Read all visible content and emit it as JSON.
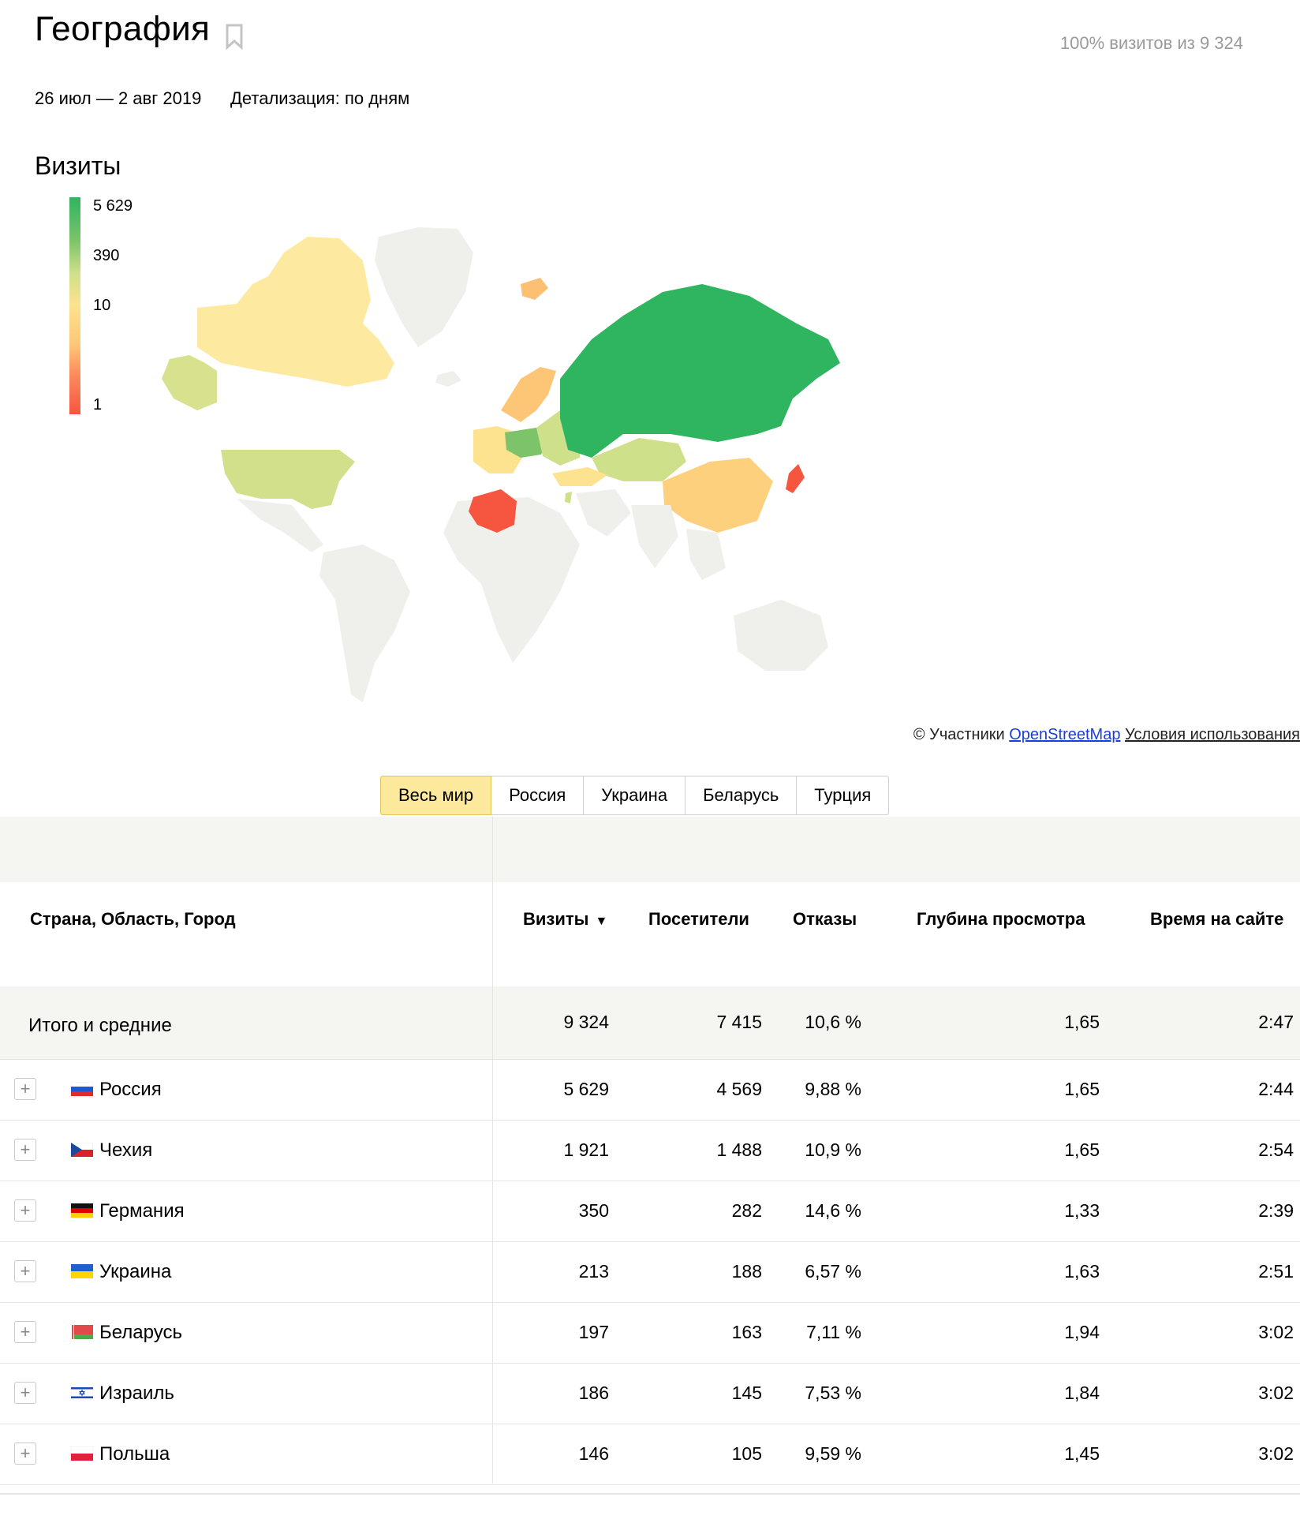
{
  "header": {
    "title": "География",
    "share": "100% визитов из 9 324",
    "date_range": "26 июл — 2 авг 2019",
    "detail": "Детализация: по дням"
  },
  "map": {
    "metric": "Визиты",
    "legend": [
      "5 629",
      "390",
      "10",
      "1"
    ],
    "scale_colors": [
      "#2fb460",
      "#cfe08a",
      "#fde28f",
      "#f6563f"
    ],
    "attribution_prefix": "© Участники",
    "attribution_link": "OpenStreetMap",
    "attribution_terms": "Условия использования"
  },
  "tabs": [
    {
      "label": "Весь мир",
      "active": true
    },
    {
      "label": "Россия",
      "active": false
    },
    {
      "label": "Украина",
      "active": false
    },
    {
      "label": "Беларусь",
      "active": false
    },
    {
      "label": "Турция",
      "active": false
    }
  ],
  "table": {
    "headers": {
      "dimension": "Страна, Область, Город",
      "visits": "Визиты",
      "visitors": "Посетители",
      "bounce": "Отказы",
      "depth": "Глубина просмотра",
      "time": "Время на сайте"
    },
    "sort_icon": "▼",
    "total": {
      "label": "Итого и средние",
      "visits": "9 324",
      "visitors": "7 415",
      "bounce": "10,6 %",
      "depth": "1,65",
      "time": "2:47"
    },
    "rows": [
      {
        "name": "Россия",
        "flag": "russia-flag",
        "visits": "5 629",
        "visitors": "4 569",
        "bounce": "9,88 %",
        "depth": "1,65",
        "time": "2:44"
      },
      {
        "name": "Чехия",
        "flag": "czechia-flag",
        "visits": "1 921",
        "visitors": "1 488",
        "bounce": "10,9 %",
        "depth": "1,65",
        "time": "2:54"
      },
      {
        "name": "Германия",
        "flag": "germany-flag",
        "visits": "350",
        "visitors": "282",
        "bounce": "14,6 %",
        "depth": "1,33",
        "time": "2:39"
      },
      {
        "name": "Украина",
        "flag": "ukraine-flag",
        "visits": "213",
        "visitors": "188",
        "bounce": "6,57 %",
        "depth": "1,63",
        "time": "2:51"
      },
      {
        "name": "Беларусь",
        "flag": "belarus-flag",
        "visits": "197",
        "visitors": "163",
        "bounce": "7,11 %",
        "depth": "1,94",
        "time": "3:02"
      },
      {
        "name": "Израиль",
        "flag": "israel-flag",
        "visits": "186",
        "visitors": "145",
        "bounce": "7,53 %",
        "depth": "1,84",
        "time": "3:02"
      },
      {
        "name": "Польша",
        "flag": "poland-flag",
        "visits": "146",
        "visitors": "105",
        "bounce": "9,59 %",
        "depth": "1,45",
        "time": "3:02"
      }
    ]
  }
}
